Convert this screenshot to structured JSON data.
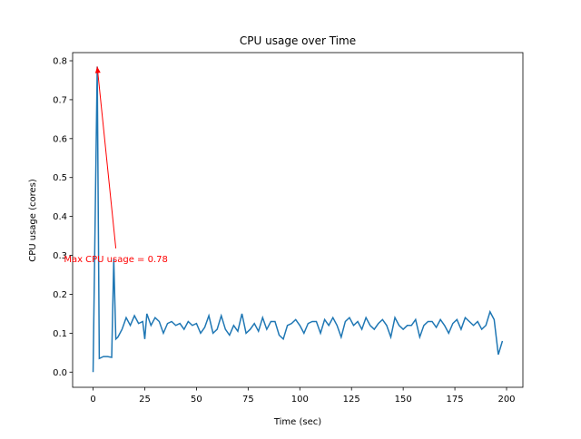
{
  "chart_data": {
    "type": "line",
    "title": "CPU usage over Time",
    "xlabel": "Time (sec)",
    "ylabel": "CPU usage (cores)",
    "color": "#1f77b4",
    "x": [
      0,
      2,
      3,
      5,
      7,
      9,
      10,
      11,
      12,
      14,
      16,
      18,
      20,
      22,
      24,
      25,
      26,
      28,
      30,
      32,
      34,
      36,
      38,
      40,
      42,
      44,
      46,
      48,
      50,
      52,
      54,
      56,
      58,
      60,
      62,
      64,
      66,
      68,
      70,
      72,
      74,
      76,
      78,
      80,
      82,
      84,
      86,
      88,
      90,
      92,
      94,
      96,
      98,
      100,
      102,
      104,
      106,
      108,
      110,
      112,
      114,
      116,
      118,
      120,
      122,
      124,
      126,
      128,
      130,
      132,
      134,
      136,
      138,
      140,
      142,
      144,
      146,
      148,
      150,
      152,
      154,
      156,
      158,
      160,
      162,
      164,
      166,
      168,
      170,
      172,
      174,
      176,
      178,
      180,
      182,
      184,
      186,
      188,
      190,
      192,
      194,
      196,
      198
    ],
    "values": [
      0,
      0.785,
      0.035,
      0.04,
      0.04,
      0.038,
      0.29,
      0.085,
      0.09,
      0.11,
      0.14,
      0.12,
      0.145,
      0.125,
      0.13,
      0.085,
      0.15,
      0.12,
      0.14,
      0.13,
      0.1,
      0.125,
      0.13,
      0.12,
      0.125,
      0.11,
      0.13,
      0.12,
      0.125,
      0.1,
      0.115,
      0.145,
      0.1,
      0.11,
      0.145,
      0.11,
      0.095,
      0.12,
      0.105,
      0.15,
      0.1,
      0.11,
      0.125,
      0.105,
      0.14,
      0.11,
      0.13,
      0.13,
      0.095,
      0.085,
      0.12,
      0.125,
      0.135,
      0.12,
      0.1,
      0.125,
      0.13,
      0.13,
      0.1,
      0.135,
      0.12,
      0.14,
      0.12,
      0.09,
      0.13,
      0.14,
      0.12,
      0.13,
      0.11,
      0.14,
      0.12,
      0.11,
      0.125,
      0.135,
      0.12,
      0.09,
      0.14,
      0.12,
      0.11,
      0.12,
      0.12,
      0.135,
      0.09,
      0.12,
      0.13,
      0.13,
      0.115,
      0.135,
      0.12,
      0.1,
      0.125,
      0.135,
      0.11,
      0.14,
      0.13,
      0.12,
      0.13,
      0.11,
      0.12,
      0.155,
      0.135,
      0.045,
      0.08
    ],
    "xlim": [
      -9.9,
      207.9
    ],
    "ylim": [
      -0.039,
      0.821
    ],
    "xticks": [
      0,
      25,
      50,
      75,
      100,
      125,
      150,
      175,
      200
    ],
    "yticks": [
      {
        "value": 0,
        "label": "0.0"
      },
      0.1,
      0.2,
      0.3,
      0.4,
      0.5,
      0.6,
      0.7,
      0.8
    ],
    "annotation": {
      "text": "Max CPU usage = 0.78",
      "xy": [
        2,
        0.785
      ],
      "xytext": [
        11,
        0.29
      ],
      "color": "red"
    }
  }
}
